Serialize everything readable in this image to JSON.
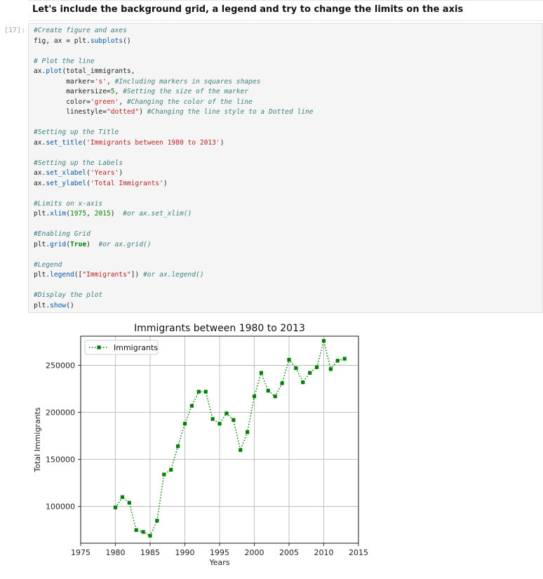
{
  "markdown": {
    "text": "Let's include the background grid, a legend and try to change the limits on the axis"
  },
  "cell": {
    "prompt": "[17]:",
    "lines": [
      [
        [
          "c",
          "#Create figure and axes"
        ]
      ],
      [
        [
          "t",
          "fig, ax = plt."
        ],
        [
          "f",
          "subplots"
        ],
        [
          "t",
          "()"
        ]
      ],
      [
        [
          "t",
          ""
        ]
      ],
      [
        [
          "c",
          "# Plot the line"
        ]
      ],
      [
        [
          "t",
          "ax."
        ],
        [
          "f",
          "plot"
        ],
        [
          "t",
          "(total_immigrants,"
        ]
      ],
      [
        [
          "t",
          "        marker="
        ],
        [
          "s",
          "'s'"
        ],
        [
          "t",
          ", "
        ],
        [
          "c",
          "#Including markers in squares shapes"
        ]
      ],
      [
        [
          "t",
          "        markersize="
        ],
        [
          "n",
          "5"
        ],
        [
          "t",
          ", "
        ],
        [
          "c",
          "#Setting the size of the marker"
        ]
      ],
      [
        [
          "t",
          "        color="
        ],
        [
          "s",
          "'green'"
        ],
        [
          "t",
          ", "
        ],
        [
          "c",
          "#Changing the color of the line"
        ]
      ],
      [
        [
          "t",
          "        linestyle="
        ],
        [
          "s",
          "\"dotted\""
        ],
        [
          "t",
          ") "
        ],
        [
          "c",
          "#Changing the line style to a Dotted line"
        ]
      ],
      [
        [
          "t",
          ""
        ]
      ],
      [
        [
          "c",
          "#Setting up the Title"
        ]
      ],
      [
        [
          "t",
          "ax."
        ],
        [
          "f",
          "set_title"
        ],
        [
          "t",
          "("
        ],
        [
          "s",
          "'Immigrants between 1980 to 2013'"
        ],
        [
          "t",
          ")"
        ]
      ],
      [
        [
          "t",
          ""
        ]
      ],
      [
        [
          "c",
          "#Setting up the Labels"
        ]
      ],
      [
        [
          "t",
          "ax."
        ],
        [
          "f",
          "set_xlabel"
        ],
        [
          "t",
          "("
        ],
        [
          "s",
          "'Years'"
        ],
        [
          "t",
          ")"
        ]
      ],
      [
        [
          "t",
          "ax."
        ],
        [
          "f",
          "set_ylabel"
        ],
        [
          "t",
          "("
        ],
        [
          "s",
          "'Total Immigrants'"
        ],
        [
          "t",
          ")"
        ]
      ],
      [
        [
          "t",
          ""
        ]
      ],
      [
        [
          "c",
          "#Limits on x-axis"
        ]
      ],
      [
        [
          "t",
          "plt."
        ],
        [
          "f",
          "xlim"
        ],
        [
          "t",
          "("
        ],
        [
          "n",
          "1975"
        ],
        [
          "t",
          ", "
        ],
        [
          "n",
          "2015"
        ],
        [
          "t",
          ")  "
        ],
        [
          "c",
          "#or ax.set_xlim()"
        ]
      ],
      [
        [
          "t",
          ""
        ]
      ],
      [
        [
          "c",
          "#Enabling Grid"
        ]
      ],
      [
        [
          "t",
          "plt."
        ],
        [
          "f",
          "grid"
        ],
        [
          "t",
          "("
        ],
        [
          "k",
          "True"
        ],
        [
          "t",
          ")  "
        ],
        [
          "c",
          "#or ax.grid()"
        ]
      ],
      [
        [
          "t",
          ""
        ]
      ],
      [
        [
          "c",
          "#Legend"
        ]
      ],
      [
        [
          "t",
          "plt."
        ],
        [
          "f",
          "legend"
        ],
        [
          "t",
          "(["
        ],
        [
          "s",
          "\"Immigrants\""
        ],
        [
          "t",
          "]) "
        ],
        [
          "c",
          "#or ax.legend()"
        ]
      ],
      [
        [
          "t",
          ""
        ]
      ],
      [
        [
          "c",
          "#Display the plot"
        ]
      ],
      [
        [
          "t",
          "plt."
        ],
        [
          "f",
          "show"
        ],
        [
          "t",
          "()"
        ]
      ]
    ]
  },
  "colors": {
    "line": "#008000",
    "grid": "#b0b0b0",
    "axes": "#000000"
  },
  "chart_data": {
    "type": "line",
    "title": "Immigrants between 1980 to 2013",
    "xlabel": "Years",
    "ylabel": "Total Immigrants",
    "xlim": [
      1975,
      2015
    ],
    "ylim": [
      61000,
      281000
    ],
    "xticks": [
      1975,
      1980,
      1985,
      1990,
      1995,
      2000,
      2005,
      2010,
      2015
    ],
    "yticks": [
      100000,
      150000,
      200000,
      250000
    ],
    "ytick_labels": [
      "100000",
      "150000",
      "200000",
      "250000"
    ],
    "grid": true,
    "legend_position": "upper left",
    "series": [
      {
        "name": "Immigrants",
        "marker": "square",
        "linestyle": "dotted",
        "x": [
          1980,
          1981,
          1982,
          1983,
          1984,
          1985,
          1986,
          1987,
          1988,
          1989,
          1990,
          1991,
          1992,
          1993,
          1994,
          1995,
          1996,
          1997,
          1998,
          1999,
          2000,
          2001,
          2002,
          2003,
          2004,
          2005,
          2006,
          2007,
          2008,
          2009,
          2010,
          2011,
          2012,
          2013
        ],
        "y": [
          99000,
          110000,
          104000,
          75000,
          73000,
          69000,
          85000,
          134000,
          139000,
          164000,
          188000,
          207000,
          222000,
          222000,
          193000,
          188000,
          199000,
          192000,
          160000,
          179000,
          217000,
          242000,
          223000,
          217000,
          231000,
          256000,
          247000,
          232000,
          242000,
          248000,
          276000,
          246000,
          255000,
          257000
        ]
      }
    ]
  }
}
